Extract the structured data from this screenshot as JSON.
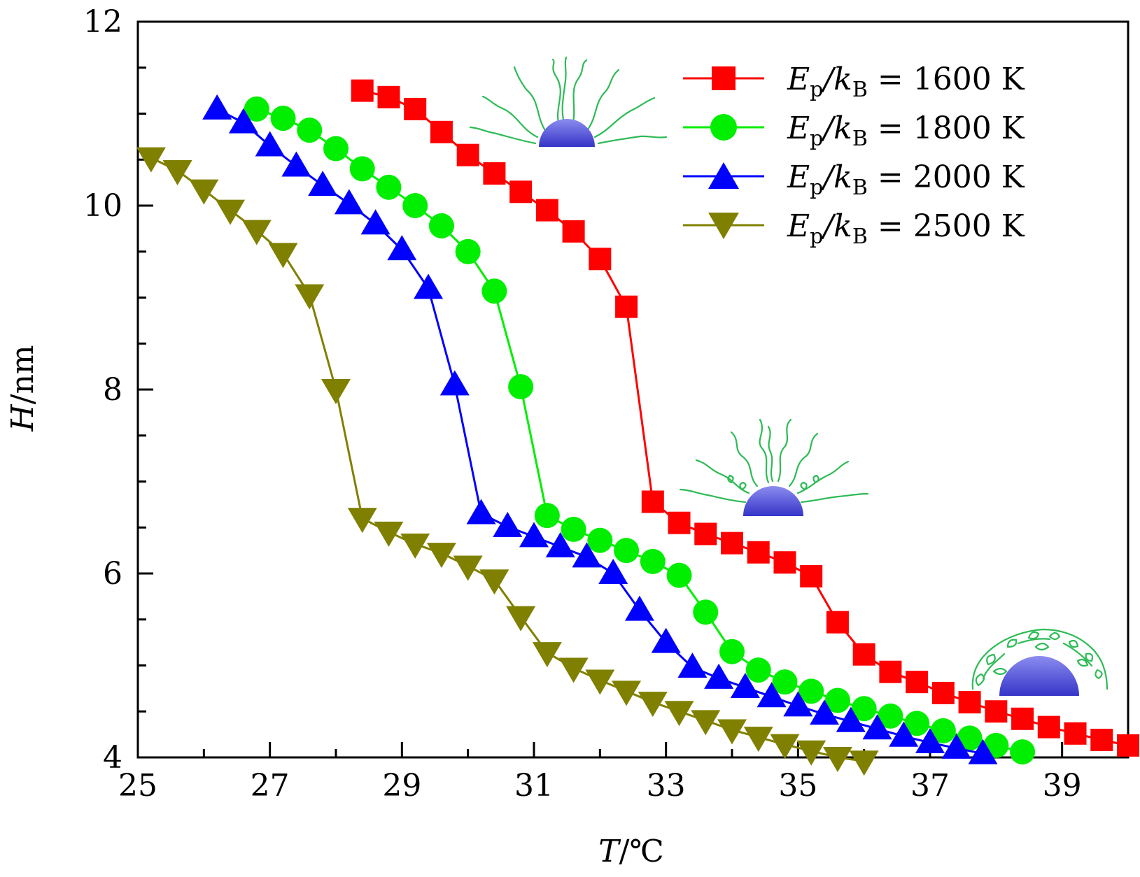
{
  "chart_data": {
    "type": "line",
    "title": "",
    "xlabel": "T/℃",
    "ylabel": "H/nm",
    "xlim": [
      25,
      40
    ],
    "ylim": [
      4,
      12
    ],
    "xticks": [
      25,
      27,
      29,
      31,
      33,
      35,
      37,
      39
    ],
    "yticks": [
      4,
      6,
      8,
      10,
      12
    ],
    "grid": false,
    "legend_position": "top-right",
    "series": [
      {
        "name": "E_p/k_B = 1600 K",
        "legend_label": "Ep/kB = 1600 K",
        "color": "#ff0000",
        "marker": "square",
        "x": [
          28.4,
          28.8,
          29.2,
          29.6,
          30.0,
          30.4,
          30.8,
          31.2,
          31.6,
          32.0,
          32.4,
          32.8,
          33.2,
          33.6,
          34.0,
          34.4,
          34.8,
          35.2,
          35.6,
          36.0,
          36.4,
          36.8,
          37.2,
          37.6,
          38.0,
          38.4,
          38.8,
          39.2,
          39.6,
          40.0
        ],
        "y": [
          11.25,
          11.18,
          11.05,
          10.8,
          10.55,
          10.35,
          10.15,
          9.95,
          9.72,
          9.42,
          8.9,
          6.78,
          6.55,
          6.43,
          6.33,
          6.23,
          6.12,
          5.97,
          5.47,
          5.12,
          4.93,
          4.82,
          4.7,
          4.6,
          4.5,
          4.42,
          4.33,
          4.26,
          4.19,
          4.13
        ]
      },
      {
        "name": "E_p/k_B = 1800 K",
        "legend_label": "Ep/kB = 1800 K",
        "color": "#00ee00",
        "marker": "circle",
        "x": [
          26.8,
          27.2,
          27.6,
          28.0,
          28.4,
          28.8,
          29.2,
          29.6,
          30.0,
          30.4,
          30.8,
          31.2,
          31.6,
          32.0,
          32.4,
          32.8,
          33.2,
          33.6,
          34.0,
          34.4,
          34.8,
          35.2,
          35.6,
          36.0,
          36.4,
          36.8,
          37.2,
          37.6,
          38.0,
          38.4
        ],
        "y": [
          11.05,
          10.95,
          10.82,
          10.62,
          10.4,
          10.2,
          10.0,
          9.78,
          9.5,
          9.07,
          8.03,
          6.63,
          6.48,
          6.36,
          6.25,
          6.13,
          5.98,
          5.58,
          5.15,
          4.95,
          4.82,
          4.72,
          4.62,
          4.53,
          4.45,
          4.37,
          4.29,
          4.21,
          4.13,
          4.06
        ]
      },
      {
        "name": "E_p/k_B = 2000 K",
        "legend_label": "Ep/kB = 2000 K",
        "color": "#0000ff",
        "marker": "triangle-up",
        "x": [
          26.2,
          26.6,
          27.0,
          27.4,
          27.8,
          28.2,
          28.6,
          29.0,
          29.4,
          29.8,
          30.2,
          30.6,
          31.0,
          31.4,
          31.8,
          32.2,
          32.6,
          33.0,
          33.4,
          33.8,
          34.2,
          34.6,
          35.0,
          35.4,
          35.8,
          36.2,
          36.6,
          37.0,
          37.4,
          37.8
        ],
        "y": [
          11.05,
          10.9,
          10.65,
          10.43,
          10.22,
          10.02,
          9.8,
          9.52,
          9.1,
          8.05,
          6.65,
          6.51,
          6.4,
          6.29,
          6.18,
          6.0,
          5.6,
          5.25,
          4.98,
          4.86,
          4.76,
          4.66,
          4.56,
          4.47,
          4.39,
          4.31,
          4.23,
          4.16,
          4.1,
          4.04
        ]
      },
      {
        "name": "E_p/k_B = 2500 K",
        "legend_label": "Ep/kB = 2500 K",
        "color": "#808000",
        "marker": "triangle-down",
        "x": [
          25.2,
          25.6,
          26.0,
          26.4,
          26.8,
          27.2,
          27.6,
          28.0,
          28.4,
          28.8,
          29.2,
          29.6,
          30.0,
          30.4,
          30.8,
          31.2,
          31.6,
          32.0,
          32.4,
          32.8,
          33.2,
          33.6,
          34.0,
          34.4,
          34.8,
          35.2,
          35.6,
          36.0
        ],
        "y": [
          10.52,
          10.38,
          10.17,
          9.95,
          9.73,
          9.48,
          9.03,
          8.0,
          6.6,
          6.45,
          6.32,
          6.22,
          6.08,
          5.93,
          5.53,
          5.14,
          4.97,
          4.84,
          4.72,
          4.6,
          4.5,
          4.4,
          4.3,
          4.22,
          4.14,
          4.07,
          4.0,
          3.96
        ]
      }
    ],
    "annotations": [
      "polymer-brush-extended-illustration",
      "polymer-brush-partially-collapsed-illustration",
      "polymer-brush-collapsed-illustration"
    ]
  },
  "legend": [
    {
      "main": "E",
      "sub1": "p",
      "mid": "/k",
      "sub2": "B",
      "rest": " = 1600 K"
    },
    {
      "main": "E",
      "sub1": "p",
      "mid": "/k",
      "sub2": "B",
      "rest": " = 1800 K"
    },
    {
      "main": "E",
      "sub1": "p",
      "mid": "/k",
      "sub2": "B",
      "rest": " = 2000 K"
    },
    {
      "main": "E",
      "sub1": "p",
      "mid": "/k",
      "sub2": "B",
      "rest": " = 2500 K"
    }
  ],
  "axes": {
    "x_label_var": "T",
    "x_label_unit": "/℃",
    "y_label_var": "H",
    "y_label_unit": "/nm"
  },
  "colors": {
    "brush": "#2dbb55",
    "sphere_light": "#8c8cf0",
    "sphere_dark": "#3535c8"
  }
}
